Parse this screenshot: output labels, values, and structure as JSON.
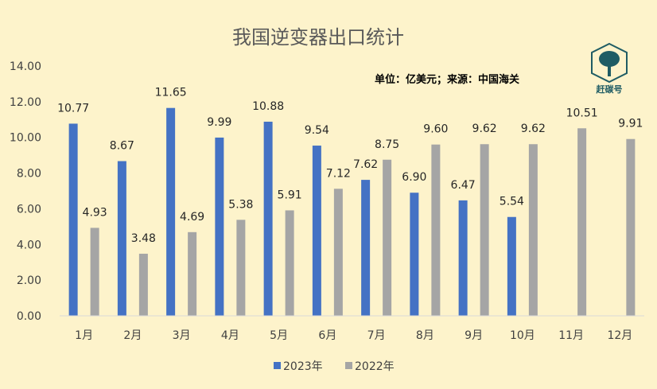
{
  "chart_data": {
    "type": "bar",
    "title": "我国逆变器出口统计",
    "note": "单位：亿美元；来源：中国海关",
    "categories": [
      "1月",
      "2月",
      "3月",
      "4月",
      "5月",
      "6月",
      "7月",
      "8月",
      "9月",
      "10月",
      "11月",
      "12月"
    ],
    "series": [
      {
        "name": "2023年",
        "color": "#4472c4",
        "values": [
          10.77,
          8.67,
          11.65,
          9.99,
          10.88,
          9.54,
          7.62,
          6.9,
          6.47,
          5.54,
          null,
          null
        ]
      },
      {
        "name": "2022年",
        "color": "#a5a5a5",
        "values": [
          4.93,
          3.48,
          4.69,
          5.38,
          5.91,
          7.12,
          8.75,
          9.6,
          9.62,
          9.62,
          10.51,
          9.91
        ]
      }
    ],
    "ylim": [
      0,
      14
    ],
    "yticks": [
      0,
      2,
      4,
      6,
      8,
      10,
      12,
      14
    ],
    "tick_decimals": 2,
    "grid": false,
    "legend": "bottom"
  },
  "logo": {
    "text": "赶碳号",
    "icon": "tree-icon",
    "color": "#1f5c64"
  }
}
